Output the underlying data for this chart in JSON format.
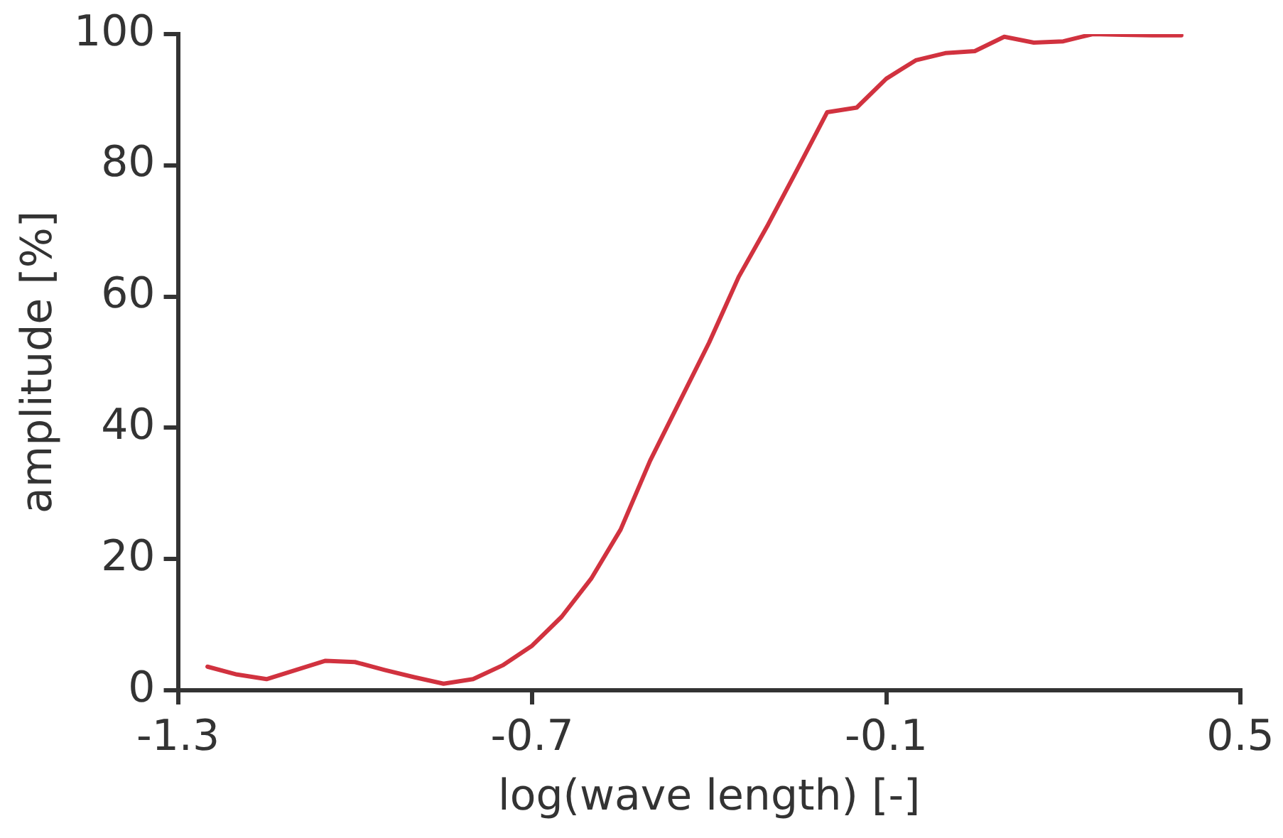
{
  "chart_data": {
    "type": "line",
    "xlabel": "log(wave length) [-]",
    "ylabel": "amplitude [%]",
    "x": [
      -1.25,
      -1.2,
      -1.15,
      -1.1,
      -1.05,
      -1.0,
      -0.95,
      -0.9,
      -0.85,
      -0.8,
      -0.75,
      -0.7,
      -0.65,
      -0.6,
      -0.55,
      -0.5,
      -0.45,
      -0.4,
      -0.35,
      -0.3,
      -0.25,
      -0.2,
      -0.15,
      -0.1,
      -0.05,
      0.0,
      0.05,
      0.1,
      0.15,
      0.2,
      0.25,
      0.3,
      0.35,
      0.4
    ],
    "series": [
      {
        "color": "#d1323f",
        "values": [
          3.6,
          2.4,
          1.7,
          3.1,
          4.5,
          4.3,
          3.1,
          2.0,
          1.0,
          1.7,
          3.8,
          6.8,
          11.2,
          17,
          24.5,
          35,
          44,
          53,
          63,
          71,
          79.5,
          88.1,
          88.8,
          93.2,
          96,
          97.1,
          97.4,
          99.6,
          98.7,
          98.9,
          100,
          99.9,
          99.8,
          99.8
        ]
      }
    ],
    "xlim": [
      -1.3,
      0.5
    ],
    "xticks": [
      -1.3,
      -0.7,
      -0.1,
      0.5
    ],
    "ylim": [
      0,
      100
    ],
    "yticks": [
      0,
      20,
      40,
      60,
      80,
      100
    ],
    "grid": false,
    "legend": false,
    "marker": "none",
    "line_style": "solid"
  }
}
